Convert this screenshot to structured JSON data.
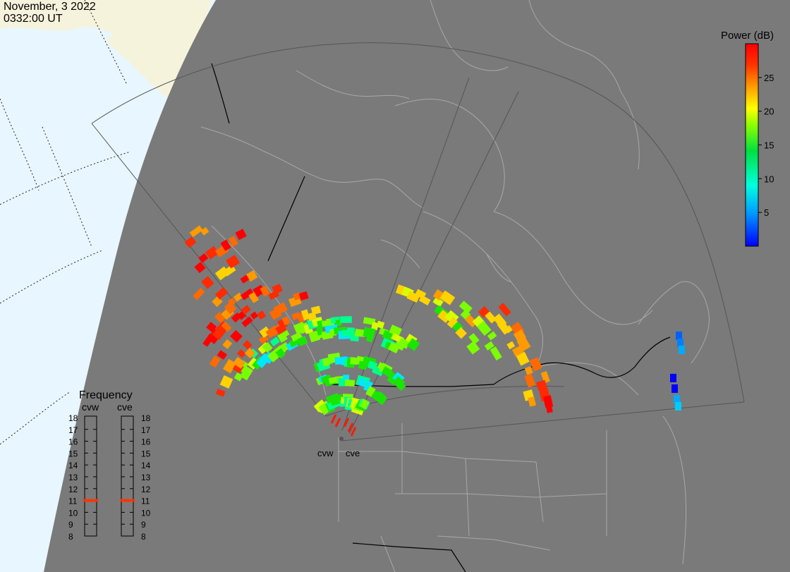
{
  "header": {
    "date": "November, 3 2022",
    "time": "0332:00 UT"
  },
  "colorbar": {
    "title": "Power (dB)",
    "ticks": [
      "25",
      "20",
      "15",
      "10",
      "5"
    ],
    "tick_values": [
      25,
      20,
      15,
      10,
      5
    ],
    "range": [
      0,
      30
    ],
    "colors": [
      "#0000ff",
      "#00c8ff",
      "#00ff88",
      "#00d000",
      "#a0ff00",
      "#ffff00",
      "#ff9000",
      "#ff4000",
      "#ff0000"
    ]
  },
  "frequency_panel": {
    "title": "Frequency",
    "radars": [
      {
        "name": "cvw",
        "selected_mhz": 11,
        "color": "#ff3300"
      },
      {
        "name": "cve",
        "selected_mhz": 11,
        "color": "#ff3300"
      }
    ],
    "scale": [
      "18",
      "17",
      "16",
      "15",
      "14",
      "13",
      "12",
      "11",
      "10",
      "9",
      "8"
    ]
  },
  "radar_sites": [
    {
      "name": "cvw"
    },
    {
      "name": "cve"
    }
  ],
  "colors": {
    "ocean": "#e8f6ff",
    "land_shade": "#7a7a7a",
    "sunlit_land": "#f5f3dc",
    "outline": "#a8a8a8",
    "border": "#000000"
  }
}
